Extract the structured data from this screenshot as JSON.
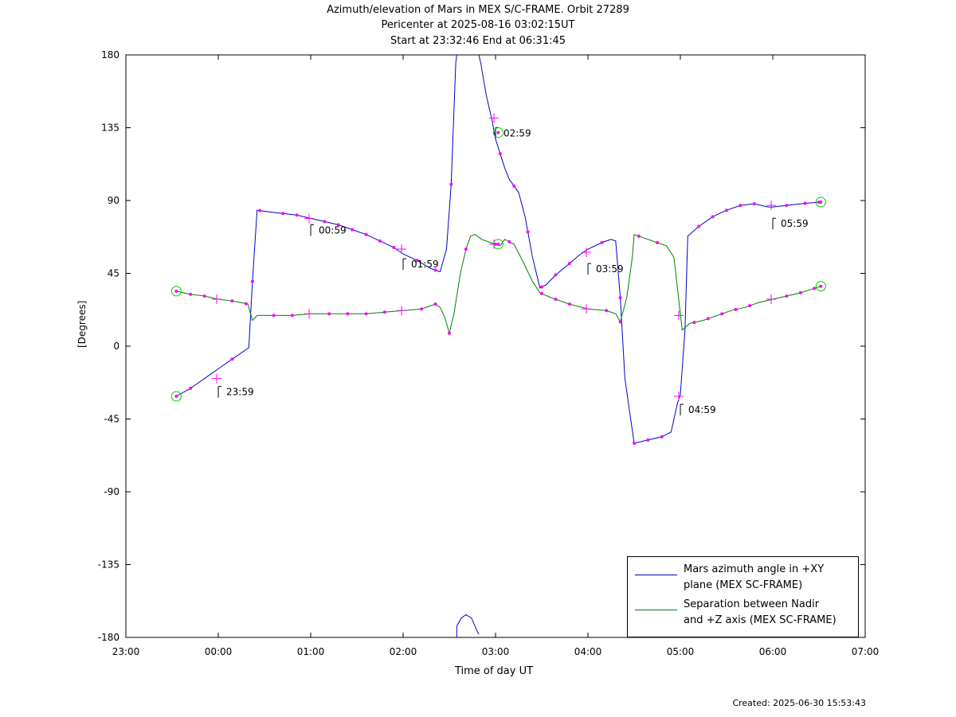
{
  "title": {
    "line1": "Azimuth/elevation of Mars in MEX S/C-FRAME.  Orbit 27289",
    "line2": "Pericenter at 2025-08-16 03:02:15UT",
    "line3": "Start at 23:32:46 End at 06:31:45"
  },
  "created": "Created: 2025-06-30 15:53:43",
  "chart_data": {
    "type": "line",
    "xlabel": "Time of day UT",
    "ylabel": "[Degrees]",
    "xlim": [
      23.0,
      31.0
    ],
    "ylim": [
      -180,
      180
    ],
    "x_ticks": [
      23,
      24,
      25,
      26,
      27,
      28,
      29,
      30,
      31
    ],
    "x_tick_labels": [
      "23:00",
      "00:00",
      "01:00",
      "02:00",
      "03:00",
      "04:00",
      "05:00",
      "06:00",
      "07:00"
    ],
    "y_ticks": [
      180,
      135,
      90,
      45,
      0,
      -45,
      -90,
      -135,
      -180
    ],
    "y_tick_labels": [
      "180",
      "135",
      "90",
      "45",
      "0",
      "-45",
      "-90",
      "-135",
      "-180"
    ],
    "grid": false,
    "legend_position": "bottom-right",
    "series": [
      {
        "name": "Mars azimuth angle in +XY plane (MEX SC-FRAME)",
        "legend_lines": [
          "Mars azimuth angle in +XY",
          "plane (MEX SC-FRAME)"
        ],
        "color": "#0000cc",
        "points": [
          [
            23.546,
            -31
          ],
          [
            23.7,
            -26
          ],
          [
            23.85,
            -20
          ],
          [
            24.0,
            -14
          ],
          [
            24.15,
            -8
          ],
          [
            24.33,
            -1
          ],
          [
            24.37,
            40
          ],
          [
            24.42,
            84
          ],
          [
            24.55,
            83
          ],
          [
            24.7,
            82
          ],
          [
            24.85,
            81
          ],
          [
            25.0,
            79
          ],
          [
            25.15,
            77
          ],
          [
            25.3,
            75
          ],
          [
            25.45,
            72
          ],
          [
            25.6,
            69
          ],
          [
            25.75,
            65
          ],
          [
            25.9,
            61
          ],
          [
            26.0,
            57
          ],
          [
            26.15,
            53
          ],
          [
            26.3,
            48
          ],
          [
            26.4,
            46
          ],
          [
            26.47,
            60
          ],
          [
            26.52,
            100
          ],
          [
            26.57,
            175
          ],
          [
            26.58,
            180
          ],
          null,
          [
            26.58,
            -180
          ],
          [
            26.58,
            -173
          ],
          [
            26.63,
            -168
          ],
          [
            26.68,
            -166
          ],
          [
            26.74,
            -168
          ],
          [
            26.8,
            -176
          ],
          [
            26.82,
            -178
          ],
          null,
          [
            26.82,
            180
          ],
          [
            26.84,
            175
          ],
          [
            26.9,
            155
          ],
          [
            26.96,
            140
          ],
          [
            27.0,
            128
          ],
          [
            27.1,
            110
          ],
          [
            27.15,
            103
          ],
          [
            27.25,
            95
          ],
          [
            27.32,
            80
          ],
          [
            27.4,
            55
          ],
          [
            27.48,
            36
          ],
          [
            27.55,
            38
          ],
          [
            27.65,
            44
          ],
          [
            27.8,
            51
          ],
          [
            27.9,
            56
          ],
          [
            28.0,
            60
          ],
          [
            28.15,
            64
          ],
          [
            28.25,
            66
          ],
          [
            28.3,
            65
          ],
          [
            28.35,
            30
          ],
          [
            28.4,
            -20
          ],
          [
            28.5,
            -60
          ],
          [
            28.65,
            -58
          ],
          [
            28.8,
            -56
          ],
          [
            28.9,
            -53
          ],
          [
            28.97,
            -35
          ],
          [
            29.0,
            -30
          ],
          [
            29.05,
            10
          ],
          [
            29.08,
            68
          ],
          [
            29.2,
            74
          ],
          [
            29.35,
            80
          ],
          [
            29.5,
            84
          ],
          [
            29.65,
            87
          ],
          [
            29.8,
            88
          ],
          [
            29.95,
            86
          ],
          [
            30.0,
            86
          ],
          [
            30.15,
            87
          ],
          [
            30.3,
            88
          ],
          [
            30.5,
            89
          ],
          [
            30.52,
            89
          ]
        ],
        "markers_x": [
          23.7,
          24.15,
          24.37,
          24.45,
          24.7,
          24.85,
          25.15,
          25.3,
          25.45,
          25.6,
          25.75,
          25.9,
          26.15,
          26.35,
          26.52,
          27.05,
          27.2,
          27.35,
          27.5,
          27.65,
          27.8,
          28.15,
          28.35,
          28.5,
          28.65,
          28.8,
          29.2,
          29.35,
          29.5,
          29.65,
          29.8,
          30.15,
          30.35,
          30.5
        ]
      },
      {
        "name": "Separation between Nadir and +Z axis (MEX SC-FRAME)",
        "legend_lines": [
          "Separation between Nadir",
          "and +Z axis (MEX SC-FRAME)"
        ],
        "color": "#008000",
        "points": [
          [
            23.546,
            34
          ],
          [
            23.7,
            32
          ],
          [
            23.85,
            31
          ],
          [
            24.0,
            29
          ],
          [
            24.15,
            28
          ],
          [
            24.32,
            26
          ],
          [
            24.37,
            16
          ],
          [
            24.42,
            19
          ],
          [
            24.6,
            19
          ],
          [
            24.8,
            19
          ],
          [
            25.0,
            20
          ],
          [
            25.2,
            20
          ],
          [
            25.4,
            20
          ],
          [
            25.6,
            20
          ],
          [
            25.8,
            21
          ],
          [
            26.0,
            22
          ],
          [
            26.2,
            23
          ],
          [
            26.35,
            26
          ],
          [
            26.4,
            24
          ],
          [
            26.45,
            18
          ],
          [
            26.5,
            8
          ],
          [
            26.55,
            20
          ],
          [
            26.62,
            45
          ],
          [
            26.68,
            60
          ],
          [
            26.73,
            68
          ],
          [
            26.78,
            69
          ],
          [
            26.85,
            66
          ],
          [
            26.95,
            64
          ],
          [
            27.0,
            63
          ],
          [
            27.05,
            62
          ],
          [
            27.1,
            66
          ],
          [
            27.2,
            63
          ],
          [
            27.3,
            52
          ],
          [
            27.4,
            40
          ],
          [
            27.48,
            33
          ],
          [
            27.6,
            30
          ],
          [
            27.8,
            26
          ],
          [
            28.0,
            23
          ],
          [
            28.2,
            22
          ],
          [
            28.3,
            20
          ],
          [
            28.35,
            15
          ],
          [
            28.42,
            30
          ],
          [
            28.48,
            55
          ],
          [
            28.5,
            69
          ],
          [
            28.6,
            67
          ],
          [
            28.75,
            64
          ],
          [
            28.85,
            62
          ],
          [
            28.93,
            55
          ],
          [
            28.98,
            30
          ],
          [
            29.02,
            10
          ],
          [
            29.1,
            14
          ],
          [
            29.25,
            16
          ],
          [
            29.4,
            19
          ],
          [
            29.55,
            22
          ],
          [
            29.7,
            24
          ],
          [
            29.85,
            27
          ],
          [
            30.0,
            29
          ],
          [
            30.15,
            31
          ],
          [
            30.3,
            33
          ],
          [
            30.52,
            37
          ]
        ],
        "markers_x": [
          23.7,
          23.85,
          24.15,
          24.3,
          24.6,
          24.8,
          25.2,
          25.4,
          25.6,
          25.8,
          26.2,
          26.35,
          26.5,
          26.68,
          27.0,
          27.15,
          27.5,
          27.65,
          27.8,
          28.2,
          28.35,
          28.55,
          28.75,
          29.15,
          29.3,
          29.45,
          29.6,
          29.75,
          30.15,
          30.3,
          30.45
        ]
      }
    ],
    "circle_markers": [
      {
        "x": 23.546,
        "y": -31
      },
      {
        "x": 23.546,
        "y": 34
      },
      {
        "x": 27.03,
        "y": 132
      },
      {
        "x": 27.03,
        "y": 63
      },
      {
        "x": 30.52,
        "y": 89
      },
      {
        "x": 30.52,
        "y": 37
      }
    ],
    "hour_marks": [
      {
        "x": 23.983,
        "y_blue": -20,
        "y_green": 29,
        "label": "23:59",
        "label_y": -21
      },
      {
        "x": 24.983,
        "y_blue": 79,
        "y_green": 20,
        "label": "00:59",
        "label_y": 79
      },
      {
        "x": 25.983,
        "y_blue": 60,
        "y_green": 22,
        "label": "01:59",
        "label_y": 58
      },
      {
        "x": 26.983,
        "y_blue": 141,
        "y_green": 63,
        "label": "02:59",
        "label_y": 139
      },
      {
        "x": 27.983,
        "y_blue": 58,
        "y_green": 23,
        "label": "03:59",
        "label_y": 55
      },
      {
        "x": 28.983,
        "y_blue": -31,
        "y_green": 19,
        "label": "04:59",
        "label_y": -32
      },
      {
        "x": 29.983,
        "y_blue": 87,
        "y_green": 29,
        "label": "05:59",
        "label_y": 83
      }
    ]
  }
}
